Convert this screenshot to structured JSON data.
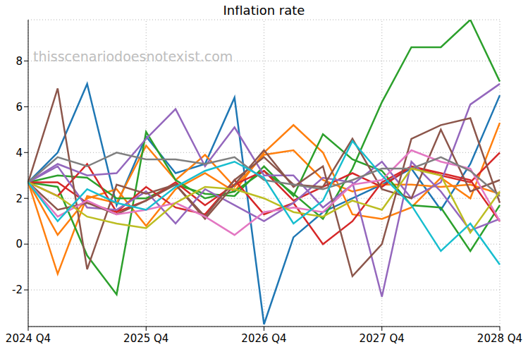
{
  "chart_data": {
    "type": "line",
    "title": "Inflation rate",
    "annotations": [
      "thisscenariodoesnotexist.com"
    ],
    "categories": [
      "2024 Q4",
      null,
      null,
      null,
      "2025 Q4",
      null,
      null,
      null,
      "2026 Q4",
      null,
      null,
      null,
      "2027 Q4",
      null,
      null,
      null,
      "2028 Q4"
    ],
    "ylim": [
      -3.6,
      9.8
    ],
    "yticks": [
      -2,
      0,
      2,
      4,
      6,
      8
    ],
    "grid": true,
    "series": [
      {
        "color": "#1f77b4",
        "values": [
          2.7,
          4.0,
          7.0,
          1.7,
          4.7,
          3.1,
          3.5,
          6.4,
          -3.5,
          0.3,
          1.4,
          2.0,
          2.6,
          3.3,
          1.5,
          3.5,
          6.5
        ]
      },
      {
        "color": "#ff7f0e",
        "values": [
          2.7,
          -1.3,
          2.1,
          1.8,
          4.3,
          2.8,
          3.9,
          2.5,
          3.9,
          4.1,
          2.8,
          2.3,
          2.6,
          2.6,
          2.5,
          2.6,
          2.2
        ]
      },
      {
        "color": "#ff7f0e",
        "values": [
          2.7,
          0.4,
          2.0,
          2.4,
          0.8,
          2.4,
          3.1,
          2.3,
          4.0,
          5.2,
          4.0,
          1.3,
          1.1,
          1.6,
          2.9,
          2.0,
          5.3
        ]
      },
      {
        "color": "#2ca02c",
        "values": [
          2.7,
          3.0,
          2.9,
          2.0,
          2.0,
          2.6,
          2.2,
          2.1,
          3.4,
          2.1,
          4.8,
          3.7,
          3.2,
          1.7,
          1.6,
          -0.3,
          1.7
        ]
      },
      {
        "color": "#2ca02c",
        "values": [
          2.7,
          2.5,
          -0.5,
          -2.2,
          4.9,
          2.8,
          2.0,
          2.3,
          3.2,
          2.2,
          1.1,
          3.3,
          6.2,
          8.6,
          8.6,
          9.8,
          7.1
        ]
      },
      {
        "color": "#d62728",
        "values": [
          2.7,
          2.7,
          1.8,
          1.4,
          2.5,
          1.6,
          1.3,
          2.8,
          1.3,
          1.8,
          0.0,
          1.0,
          2.7,
          3.4,
          3.0,
          2.7,
          4.0
        ]
      },
      {
        "color": "#d62728",
        "values": [
          2.7,
          2.1,
          3.5,
          1.4,
          1.9,
          2.7,
          1.7,
          2.6,
          3.2,
          1.9,
          2.5,
          3.1,
          2.5,
          3.4,
          3.1,
          2.8,
          1.0
        ]
      },
      {
        "color": "#9467bd",
        "values": [
          2.7,
          3.5,
          3.0,
          3.1,
          4.6,
          5.9,
          3.4,
          5.1,
          3.0,
          3.0,
          1.6,
          2.6,
          3.6,
          2.0,
          2.7,
          6.1,
          7.0
        ]
      },
      {
        "color": "#9467bd",
        "values": [
          2.7,
          3.4,
          1.6,
          1.5,
          2.3,
          0.9,
          2.4,
          1.7,
          1.0,
          1.8,
          2.9,
          2.7,
          -2.3,
          3.6,
          2.3,
          0.6,
          1.1
        ]
      },
      {
        "color": "#8c564b",
        "values": [
          2.7,
          6.8,
          -1.1,
          2.6,
          2.2,
          2.6,
          1.1,
          2.6,
          4.1,
          2.5,
          3.4,
          -1.4,
          0.0,
          4.6,
          5.2,
          5.5,
          1.8
        ]
      },
      {
        "color": "#8c564b",
        "values": [
          2.7,
          1.5,
          1.8,
          1.3,
          1.9,
          2.6,
          1.2,
          2.8,
          3.8,
          2.6,
          2.5,
          4.6,
          2.4,
          2.0,
          5.0,
          2.3,
          2.8
        ]
      },
      {
        "color": "#e377c2",
        "values": [
          2.7,
          1.2,
          1.9,
          1.3,
          1.5,
          1.8,
          1.2,
          0.4,
          1.4,
          1.6,
          1.4,
          2.6,
          2.8,
          4.1,
          3.6,
          3.3,
          1.0
        ]
      },
      {
        "color": "#7f7f7f",
        "values": [
          2.7,
          3.8,
          3.4,
          4.0,
          3.7,
          3.7,
          3.5,
          3.8,
          2.8,
          2.6,
          2.4,
          2.8,
          3.3,
          3.3,
          3.8,
          3.2,
          2.1
        ]
      },
      {
        "color": "#bcbd22",
        "values": [
          2.7,
          2.1,
          1.2,
          0.9,
          0.7,
          1.8,
          2.5,
          2.4,
          2.0,
          1.4,
          1.2,
          1.9,
          1.5,
          3.3,
          3.0,
          0.5,
          2.3
        ]
      },
      {
        "color": "#17becf",
        "values": [
          2.7,
          1.0,
          2.4,
          1.8,
          1.5,
          2.5,
          3.2,
          3.6,
          2.9,
          0.9,
          1.9,
          4.5,
          3.0,
          1.7,
          -0.3,
          0.9,
          -0.9
        ]
      }
    ]
  }
}
